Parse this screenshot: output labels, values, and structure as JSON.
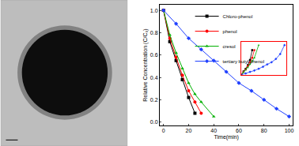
{
  "chart_data": [
    {
      "type": "line",
      "x_label": "Time(min)",
      "y_label": "Relative Concentration (C/C₀)",
      "xlim": [
        -3,
        103
      ],
      "xticks": [
        0,
        20,
        40,
        60,
        80,
        100
      ],
      "ylim": [
        -0.03,
        1.05
      ],
      "yticks": [
        {
          "value": 0,
          "label": "0.0"
        },
        {
          "value": 0.2,
          "label": "0.2"
        },
        {
          "value": 0.4,
          "label": "0.4"
        },
        {
          "value": 0.6,
          "label": "0.6"
        },
        {
          "value": 0.8,
          "label": "0.8"
        },
        {
          "value": 1,
          "label": "1.0"
        }
      ],
      "grid": false,
      "legend": "upper center",
      "series": [
        {
          "name": "Chloro-phenol",
          "color": "#000000",
          "marker": "square",
          "x": [
            0,
            5,
            10,
            15,
            20,
            25
          ],
          "values": [
            1.0,
            0.72,
            0.55,
            0.38,
            0.22,
            0.08
          ]
        },
        {
          "name": "phenol",
          "color": "#ff0000",
          "marker": "circle",
          "x": [
            0,
            5,
            10,
            15,
            20,
            25,
            30
          ],
          "values": [
            1.0,
            0.75,
            0.58,
            0.42,
            0.28,
            0.18,
            0.08
          ]
        },
        {
          "name": "cresol",
          "color": "#00b000",
          "marker": "triangle-up",
          "x": [
            0,
            5,
            10,
            15,
            20,
            25,
            30,
            40
          ],
          "values": [
            1.0,
            0.78,
            0.62,
            0.48,
            0.35,
            0.25,
            0.18,
            0.05
          ]
        },
        {
          "name": "tertiary butyl phenol",
          "color": "#2040ff",
          "marker": "diamond",
          "x": [
            0,
            10,
            20,
            30,
            40,
            50,
            60,
            70,
            80,
            90,
            100
          ],
          "values": [
            1.0,
            0.88,
            0.75,
            0.65,
            0.55,
            0.45,
            0.35,
            0.28,
            0.2,
            0.12,
            0.05
          ]
        }
      ]
    },
    {
      "type": "scatter",
      "xlim": [
        0,
        105
      ],
      "ylim": [
        0,
        3.3
      ],
      "tick_labels": false,
      "series": [
        {
          "color": "#000000",
          "marker": "square",
          "x": [
            0,
            5,
            10,
            15,
            20,
            25
          ],
          "values": [
            0,
            0.33,
            0.6,
            0.97,
            1.5,
            2.5
          ]
        },
        {
          "color": "#ff0000",
          "marker": "circle",
          "x": [
            0,
            5,
            10,
            15,
            20,
            25,
            30
          ],
          "values": [
            0,
            0.29,
            0.54,
            0.87,
            1.27,
            1.71,
            2.5
          ]
        },
        {
          "color": "#00b000",
          "marker": "triangle-up",
          "x": [
            0,
            5,
            10,
            15,
            20,
            25,
            30,
            40
          ],
          "values": [
            0,
            0.25,
            0.48,
            0.73,
            1.05,
            1.39,
            1.71,
            3.0
          ]
        },
        {
          "color": "#2040ff",
          "marker": "diamond",
          "x": [
            0,
            10,
            20,
            30,
            40,
            50,
            60,
            70,
            80,
            90,
            100
          ],
          "values": [
            0,
            0.13,
            0.29,
            0.43,
            0.6,
            0.8,
            1.05,
            1.27,
            1.6,
            2.1,
            3.0
          ]
        }
      ]
    }
  ]
}
